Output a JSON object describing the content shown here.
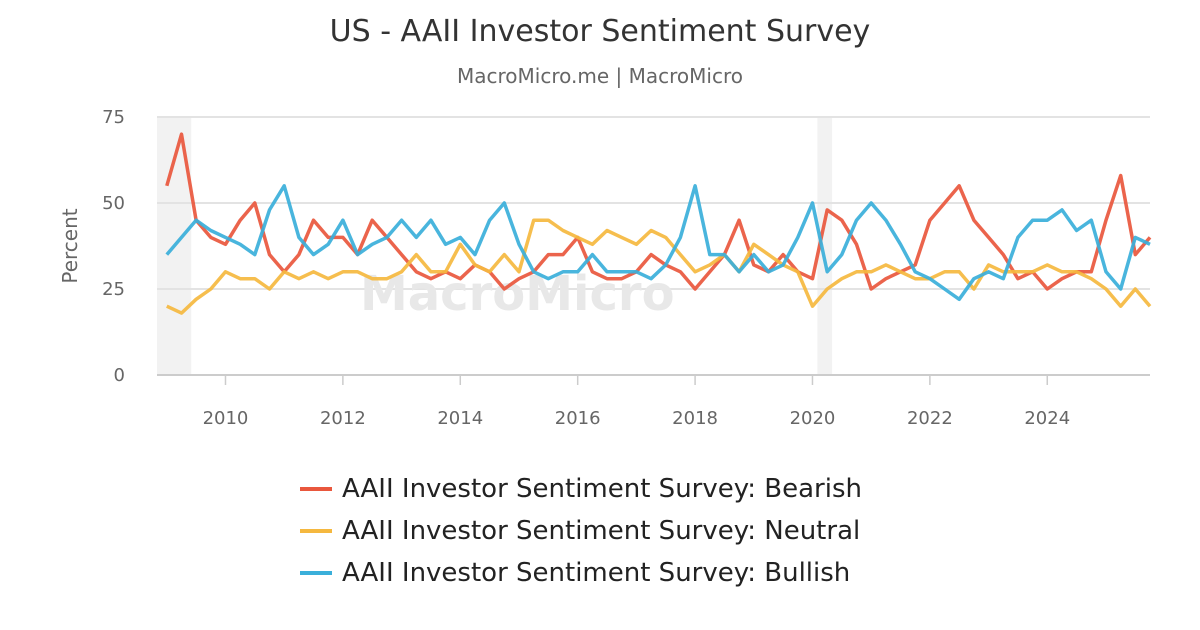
{
  "chart_data": {
    "type": "line",
    "title": "US - AAII Investor Sentiment Survey",
    "subtitle": "MacroMicro.me | MacroMicro",
    "ylabel": "Percent",
    "xlabel": "",
    "ylim": [
      0,
      75
    ],
    "yticks": [
      "0",
      "25",
      "50",
      "75"
    ],
    "xlim": [
      "2008-11",
      "2025-10"
    ],
    "xticks": [
      "2010",
      "2012",
      "2014",
      "2016",
      "2018",
      "2020",
      "2022",
      "2024"
    ],
    "grid": true,
    "legend": "bottom",
    "shaded_periods": [
      [
        "2008-11",
        "2009-06"
      ],
      [
        "2020-02",
        "2020-05"
      ]
    ],
    "watermark": "MacroMicro",
    "x": [
      "2009-01",
      "2009-04",
      "2009-07",
      "2009-10",
      "2010-01",
      "2010-04",
      "2010-07",
      "2010-10",
      "2011-01",
      "2011-04",
      "2011-07",
      "2011-10",
      "2012-01",
      "2012-04",
      "2012-07",
      "2012-10",
      "2013-01",
      "2013-04",
      "2013-07",
      "2013-10",
      "2014-01",
      "2014-04",
      "2014-07",
      "2014-10",
      "2015-01",
      "2015-04",
      "2015-07",
      "2015-10",
      "2016-01",
      "2016-04",
      "2016-07",
      "2016-10",
      "2017-01",
      "2017-04",
      "2017-07",
      "2017-10",
      "2018-01",
      "2018-04",
      "2018-07",
      "2018-10",
      "2019-01",
      "2019-04",
      "2019-07",
      "2019-10",
      "2020-01",
      "2020-04",
      "2020-07",
      "2020-10",
      "2021-01",
      "2021-04",
      "2021-07",
      "2021-10",
      "2022-01",
      "2022-04",
      "2022-07",
      "2022-10",
      "2023-01",
      "2023-04",
      "2023-07",
      "2023-10",
      "2024-01",
      "2024-04",
      "2024-07",
      "2024-10",
      "2025-01",
      "2025-04",
      "2025-07",
      "2025-10"
    ],
    "series": [
      {
        "name": "AAII Investor Sentiment Survey: Bearish",
        "color": "#e9573d",
        "values": [
          55,
          70,
          45,
          40,
          38,
          45,
          50,
          35,
          30,
          35,
          45,
          40,
          40,
          35,
          45,
          40,
          35,
          30,
          28,
          30,
          28,
          32,
          30,
          25,
          28,
          30,
          35,
          35,
          40,
          30,
          28,
          28,
          30,
          35,
          32,
          30,
          25,
          30,
          35,
          45,
          32,
          30,
          35,
          30,
          28,
          48,
          45,
          38,
          25,
          28,
          30,
          32,
          45,
          50,
          55,
          45,
          40,
          35,
          28,
          30,
          25,
          28,
          30,
          30,
          45,
          58,
          35,
          40
        ]
      },
      {
        "name": "AAII Investor Sentiment Survey: Neutral",
        "color": "#f5b83f",
        "values": [
          20,
          18,
          22,
          25,
          30,
          28,
          28,
          25,
          30,
          28,
          30,
          28,
          30,
          30,
          28,
          28,
          30,
          35,
          30,
          30,
          38,
          32,
          30,
          35,
          30,
          45,
          45,
          42,
          40,
          38,
          42,
          40,
          38,
          42,
          40,
          35,
          30,
          32,
          35,
          30,
          38,
          35,
          32,
          30,
          20,
          25,
          28,
          30,
          30,
          32,
          30,
          28,
          28,
          30,
          30,
          25,
          32,
          30,
          30,
          30,
          32,
          30,
          30,
          28,
          25,
          20,
          25,
          20
        ]
      },
      {
        "name": "AAII Investor Sentiment Survey: Bullish",
        "color": "#3aafda",
        "values": [
          35,
          40,
          45,
          42,
          40,
          38,
          35,
          48,
          55,
          40,
          35,
          38,
          45,
          35,
          38,
          40,
          45,
          40,
          45,
          38,
          40,
          35,
          45,
          50,
          38,
          30,
          28,
          30,
          30,
          35,
          30,
          30,
          30,
          28,
          32,
          40,
          55,
          35,
          35,
          30,
          35,
          30,
          32,
          40,
          50,
          30,
          35,
          45,
          50,
          45,
          38,
          30,
          28,
          25,
          22,
          28,
          30,
          28,
          40,
          45,
          45,
          48,
          42,
          45,
          30,
          25,
          40,
          38
        ]
      }
    ]
  }
}
